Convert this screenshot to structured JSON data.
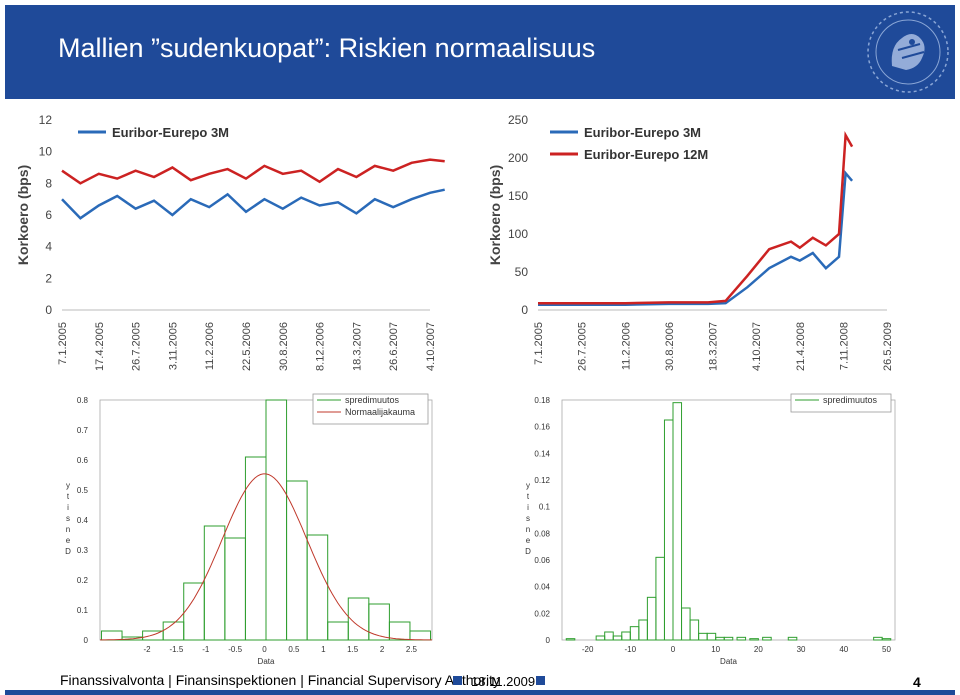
{
  "slide": {
    "title": "Mallien ”sudenkuopat”: Riskien normaalisuus",
    "footer": "Finanssivalvonta | Finansinspektionen | Financial Supervisory Authority",
    "date": "18.11.2009",
    "page": "4",
    "colors": {
      "header": "#1f4a99",
      "hist": "#2e9e2e",
      "normal": "#c0392b",
      "blue_line": "#2a6ab8",
      "red_line": "#cc2222"
    }
  },
  "chart_data": [
    {
      "type": "line",
      "ylabel": "Korkoero (bps)",
      "ylim": [
        0,
        12
      ],
      "yticks": [
        "0",
        "2",
        "4",
        "6",
        "8",
        "10",
        "12"
      ],
      "xticks": [
        "7.1.2005",
        "17.4.2005",
        "26.7.2005",
        "3.11.2005",
        "11.2.2006",
        "22.5.2006",
        "30.8.2006",
        "8.12.2006",
        "18.3.2007",
        "26.6.2007",
        "4.10.2007"
      ],
      "series": [
        {
          "name": "Euribor-Eurepo 3M",
          "color": "#2a6ab8",
          "x": [
            0,
            0.5,
            1,
            1.5,
            2,
            2.5,
            3,
            3.5,
            4,
            4.5,
            5,
            5.5,
            6,
            6.5,
            7,
            7.5,
            8,
            8.5,
            9,
            9.5,
            10,
            10.4
          ],
          "values": [
            7.0,
            5.8,
            6.6,
            7.2,
            6.4,
            6.9,
            6.0,
            7.0,
            6.5,
            7.3,
            6.2,
            7.0,
            6.4,
            7.1,
            6.6,
            6.8,
            6.1,
            7.0,
            6.5,
            7.0,
            7.4,
            7.6
          ]
        },
        {
          "name": "",
          "color": "#cc2222",
          "x": [
            0,
            0.5,
            1,
            1.5,
            2,
            2.5,
            3,
            3.5,
            4,
            4.5,
            5,
            5.5,
            6,
            6.5,
            7,
            7.5,
            8,
            8.5,
            9,
            9.5,
            10,
            10.4
          ],
          "values": [
            8.8,
            8.0,
            8.6,
            8.3,
            8.8,
            8.4,
            9.0,
            8.2,
            8.6,
            8.9,
            8.3,
            9.1,
            8.6,
            8.8,
            8.1,
            8.9,
            8.4,
            9.1,
            8.8,
            9.3,
            9.5,
            9.4
          ]
        }
      ]
    },
    {
      "type": "line",
      "ylabel": "Korkoero (bps)",
      "ylim": [
        0,
        250
      ],
      "yticks": [
        "0",
        "50",
        "100",
        "150",
        "200",
        "250"
      ],
      "xticks": [
        "7.1.2005",
        "26.7.2005",
        "11.2.2006",
        "30.8.2006",
        "18.3.2007",
        "4.10.2007",
        "21.4.2008",
        "7.11.2008",
        "26.5.2009"
      ],
      "series": [
        {
          "name": "Euribor-Eurepo 3M",
          "color": "#2a6ab8",
          "x": [
            0,
            1,
            2,
            3,
            3.9,
            4.3,
            4.8,
            5.3,
            5.8,
            6.0,
            6.3,
            6.6,
            6.9,
            7.05,
            7.2
          ],
          "values": [
            7,
            7,
            7,
            8,
            8,
            9,
            30,
            55,
            70,
            65,
            75,
            55,
            70,
            180,
            170
          ]
        },
        {
          "name": "Euribor-Eurepo 12M",
          "color": "#cc2222",
          "x": [
            0,
            1,
            2,
            3,
            3.9,
            4.3,
            4.8,
            5.3,
            5.8,
            6.0,
            6.3,
            6.6,
            6.9,
            7.05,
            7.2
          ],
          "values": [
            9,
            9,
            9,
            10,
            10,
            12,
            45,
            80,
            90,
            82,
            95,
            85,
            100,
            230,
            215
          ]
        }
      ]
    },
    {
      "type": "bar",
      "xlabel": "Data",
      "ylabel": "Density",
      "ylim": [
        0,
        0.8
      ],
      "yticks": [
        "0",
        "0.1",
        "0.2",
        "0.3",
        "0.4",
        "0.5",
        "0.6",
        "0.7",
        "0.8"
      ],
      "xticks": [
        "-2",
        "-1.5",
        "-1",
        "-0.5",
        "0",
        "0.5",
        "1",
        "1.5",
        "2",
        "2.5"
      ],
      "legend": [
        "spredimuutos",
        "Normaalijakauma"
      ],
      "x": [
        -2.6,
        -2.25,
        -1.9,
        -1.55,
        -1.2,
        -0.85,
        -0.5,
        -0.15,
        0.2,
        0.55,
        0.9,
        1.25,
        1.6,
        1.95,
        2.3,
        2.65
      ],
      "values": [
        0.03,
        0.01,
        0.03,
        0.06,
        0.19,
        0.38,
        0.34,
        0.61,
        0.8,
        0.53,
        0.35,
        0.06,
        0.14,
        0.12,
        0.06,
        0.03
      ],
      "normal": {
        "mean": 0.0,
        "sd": 0.72
      }
    },
    {
      "type": "bar",
      "xlabel": "Data",
      "ylabel": "Density",
      "ylim": [
        0,
        0.18
      ],
      "yticks": [
        "0",
        "0.02",
        "0.04",
        "0.06",
        "0.08",
        "0.1",
        "0.12",
        "0.14",
        "0.16",
        "0.18"
      ],
      "xticks": [
        "-20",
        "-10",
        "0",
        "10",
        "20",
        "30",
        "40",
        "50"
      ],
      "legend": [
        "spredimuutos"
      ],
      "x": [
        -24,
        -19,
        -17,
        -15,
        -13,
        -11,
        -9,
        -7,
        -5,
        -3,
        -1,
        1,
        3,
        5,
        7,
        9,
        11,
        13,
        16,
        19,
        22,
        25,
        28,
        32,
        36,
        40,
        44,
        48,
        50
      ],
      "values": [
        0.001,
        0.0,
        0.003,
        0.006,
        0.003,
        0.006,
        0.01,
        0.015,
        0.032,
        0.062,
        0.165,
        0.178,
        0.024,
        0.015,
        0.005,
        0.005,
        0.002,
        0.002,
        0.002,
        0.001,
        0.002,
        0.0,
        0.002,
        0.0,
        0.0,
        0.0,
        0.0,
        0.002,
        0.001
      ],
      "binwidth": 2
    }
  ]
}
